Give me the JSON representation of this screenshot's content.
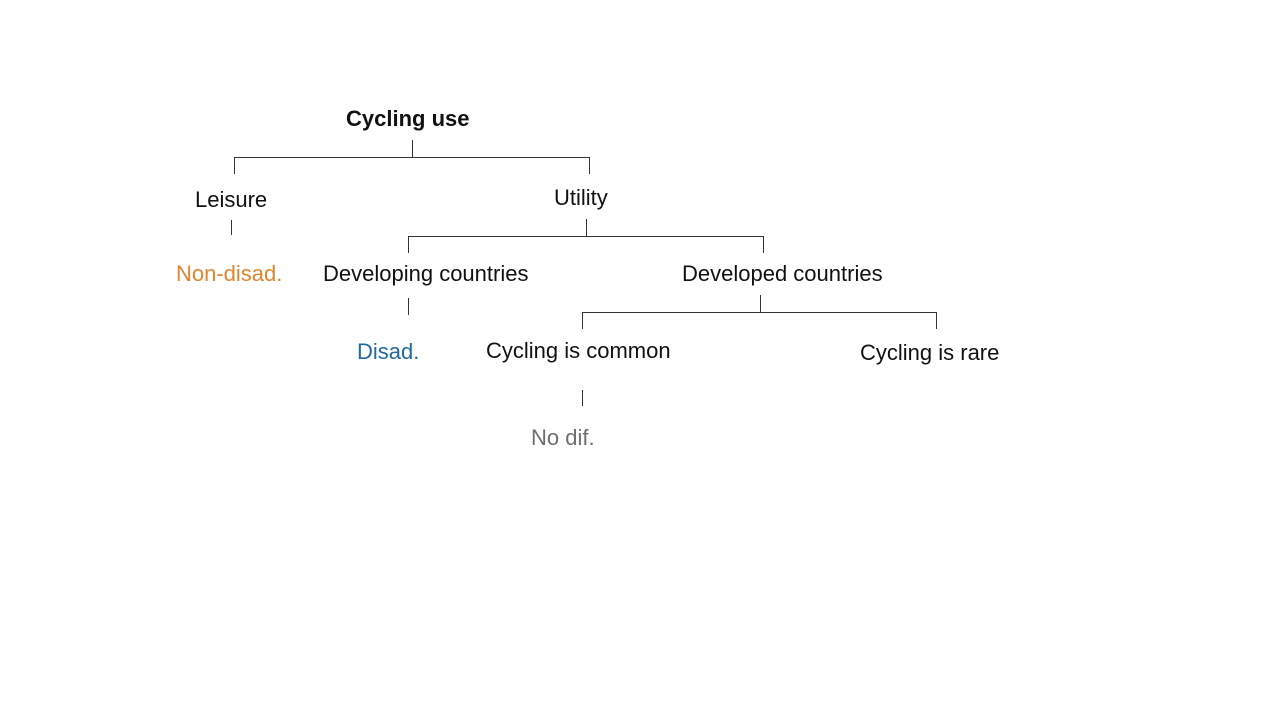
{
  "diagram": {
    "root": {
      "label": "Cycling use"
    },
    "leisure": {
      "label": "Leisure"
    },
    "utility": {
      "label": "Utility"
    },
    "non_disad": {
      "label": "Non-disad.",
      "color": "#E0852F"
    },
    "developing": {
      "label": "Developing countries"
    },
    "developed": {
      "label": "Developed countries"
    },
    "disad": {
      "label": "Disad.",
      "color": "#1F6AA0"
    },
    "cycling_common": {
      "label": "Cycling is common"
    },
    "cycling_rare": {
      "label": "Cycling is rare"
    },
    "no_dif": {
      "label": "No dif.",
      "color": "#6E6E6E"
    }
  }
}
